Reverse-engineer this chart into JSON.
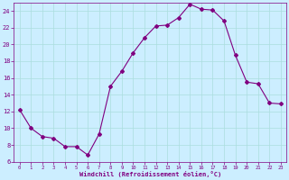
{
  "x": [
    0,
    1,
    2,
    3,
    4,
    5,
    6,
    7,
    8,
    9,
    10,
    11,
    12,
    13,
    14,
    15,
    16,
    17,
    18,
    19,
    20,
    21,
    22,
    23
  ],
  "y": [
    12.2,
    10.0,
    9.0,
    8.8,
    7.8,
    7.8,
    6.8,
    9.3,
    15.0,
    16.8,
    19.0,
    20.8,
    22.2,
    22.3,
    23.2,
    24.8,
    24.2,
    24.1,
    22.8,
    18.7,
    15.5,
    15.3,
    13.0,
    12.9
  ],
  "line_color": "#800080",
  "marker": "D",
  "marker_size": 2,
  "bg_color": "#cceeff",
  "grid_color": "#aadddd",
  "xlabel": "Windchill (Refroidissement éolien,°C)",
  "xlabel_color": "#800080",
  "tick_color": "#800080",
  "ylim": [
    6,
    25
  ],
  "xlim": [
    -0.5,
    23.5
  ],
  "yticks": [
    6,
    8,
    10,
    12,
    14,
    16,
    18,
    20,
    22,
    24
  ],
  "xticks": [
    0,
    1,
    2,
    3,
    4,
    5,
    6,
    7,
    8,
    9,
    10,
    11,
    12,
    13,
    14,
    15,
    16,
    17,
    18,
    19,
    20,
    21,
    22,
    23
  ]
}
